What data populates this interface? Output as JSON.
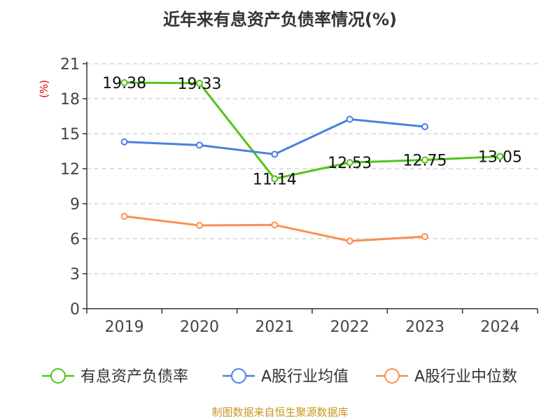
{
  "chart_data": {
    "type": "line",
    "title": "近年来有息资产负债率情况(%)",
    "ylabel": "(%)",
    "categories": [
      "2019",
      "2020",
      "2021",
      "2022",
      "2023",
      "2024"
    ],
    "ylim": [
      0,
      21
    ],
    "yticks": [
      0,
      3,
      6,
      9,
      12,
      15,
      18,
      21
    ],
    "grid": true,
    "legend_position": "bottom",
    "series": [
      {
        "name": "有息资产负债率",
        "color": "#52c41a",
        "values": [
          19.38,
          19.33,
          11.14,
          12.53,
          12.75,
          13.05
        ],
        "labels": true
      },
      {
        "name": "A股行业均值",
        "color": "#4a80e0",
        "values": [
          14.3,
          14.02,
          13.24,
          16.24,
          15.6,
          null
        ],
        "labels": false
      },
      {
        "name": "A股行业中位数",
        "color": "#ff8c55",
        "values": [
          7.92,
          7.14,
          7.18,
          5.8,
          6.18,
          null
        ],
        "labels": false
      }
    ]
  },
  "source": "制图数据来自恒生聚源数据库"
}
